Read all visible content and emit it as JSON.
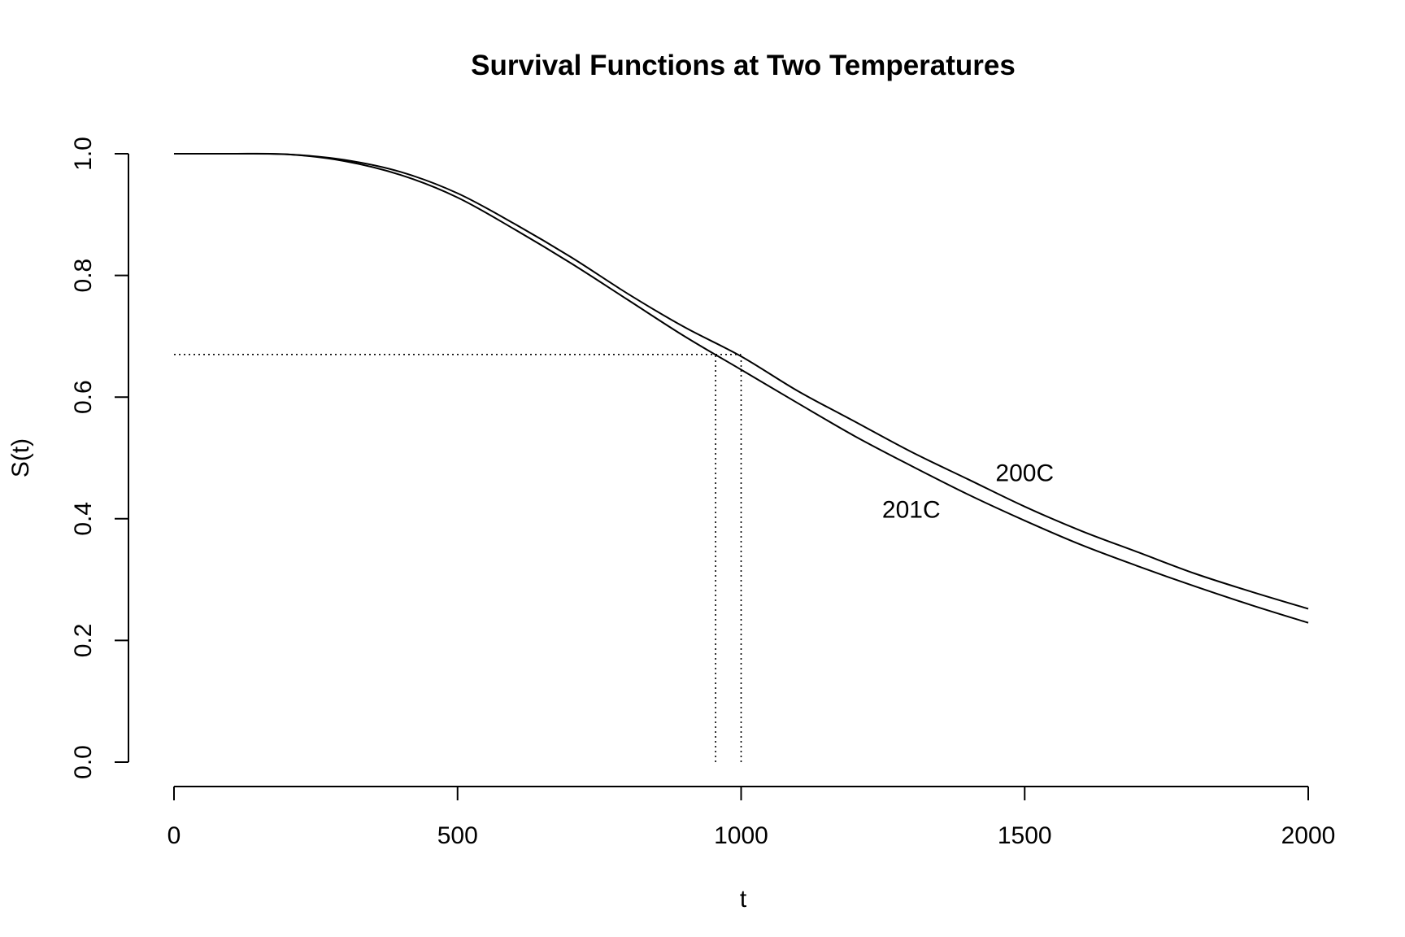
{
  "chart_data": {
    "type": "line",
    "title": "Survival Functions at Two Temperatures",
    "xlabel": "t",
    "ylabel": "S(t)",
    "xlim": [
      0,
      2000
    ],
    "ylim": [
      0,
      1
    ],
    "xticks": [
      0,
      500,
      1000,
      1500,
      2000
    ],
    "xtick_labels": [
      "0",
      "500",
      "1000",
      "1500",
      "2000"
    ],
    "yticks": [
      0,
      0.2,
      0.4,
      0.6,
      0.8,
      1.0
    ],
    "ytick_labels": [
      "0.0",
      "0.2",
      "0.4",
      "0.6",
      "0.8",
      "1.0"
    ],
    "grid": false,
    "legend": "none",
    "series": [
      {
        "name": "200C",
        "x": [
          0,
          100,
          200,
          300,
          400,
          500,
          600,
          700,
          800,
          900,
          1000,
          1100,
          1200,
          1300,
          1400,
          1500,
          1600,
          1700,
          1800,
          1900,
          2000
        ],
        "y": [
          1.0,
          1.0,
          0.999,
          0.99,
          0.97,
          0.935,
          0.885,
          0.83,
          0.77,
          0.715,
          0.667,
          0.61,
          0.56,
          0.51,
          0.465,
          0.42,
          0.38,
          0.345,
          0.31,
          0.28,
          0.252
        ]
      },
      {
        "name": "201C",
        "x": [
          0,
          100,
          200,
          300,
          400,
          500,
          600,
          700,
          800,
          900,
          1000,
          1100,
          1200,
          1300,
          1400,
          1500,
          1600,
          1700,
          1800,
          1900,
          2000
        ],
        "y": [
          1.0,
          1.0,
          0.999,
          0.988,
          0.965,
          0.928,
          0.876,
          0.82,
          0.76,
          0.7,
          0.645,
          0.59,
          0.536,
          0.487,
          0.44,
          0.397,
          0.357,
          0.322,
          0.289,
          0.258,
          0.229
        ]
      }
    ],
    "annotations": [
      {
        "label": "200C",
        "x": 1500,
        "y": 0.475
      },
      {
        "label": "201C",
        "x": 1300,
        "y": 0.415
      }
    ],
    "reference_lines": {
      "horizontal": {
        "y": 0.67,
        "x_from": 0,
        "x_to": 1000
      },
      "vertical": [
        {
          "x": 955,
          "y_from": 0,
          "y_to": 0.67
        },
        {
          "x": 1000,
          "y_from": 0,
          "y_to": 0.67
        }
      ]
    }
  }
}
